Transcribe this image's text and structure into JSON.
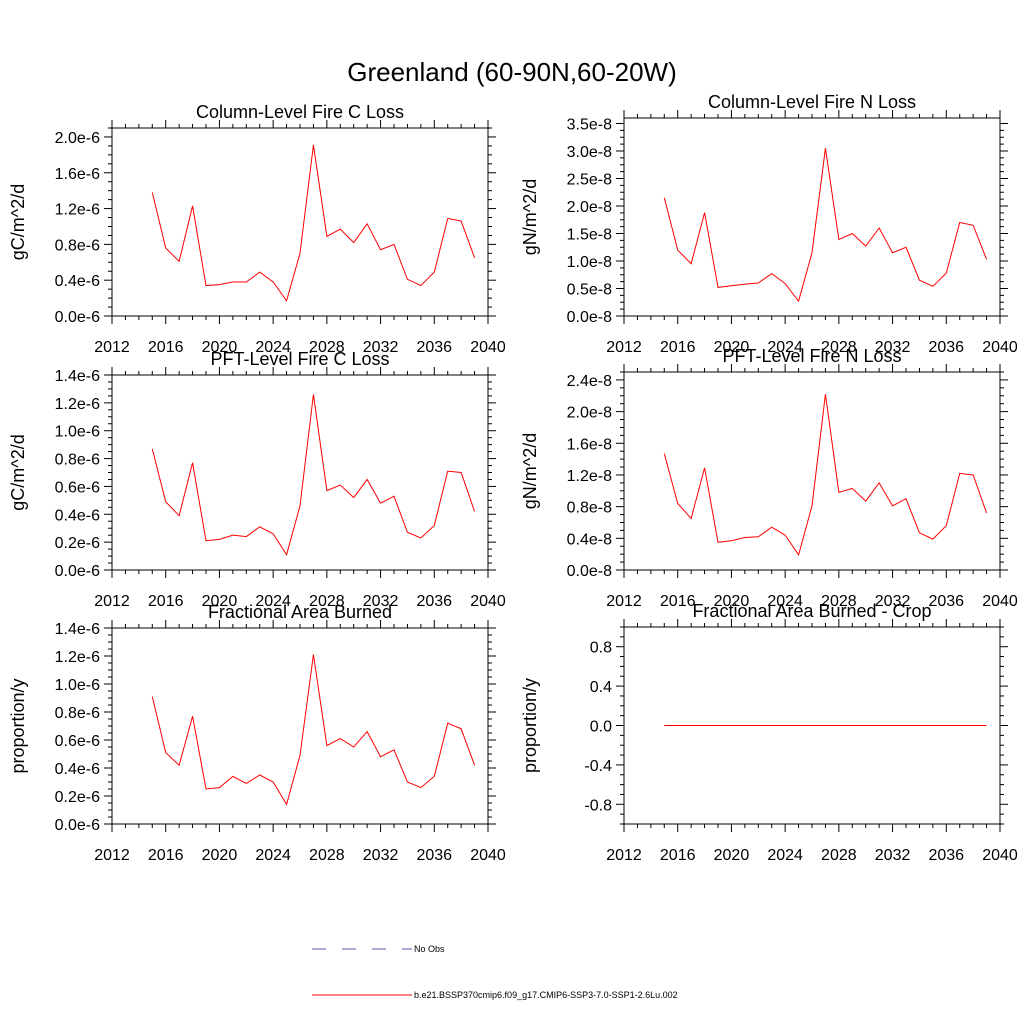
{
  "figure": {
    "title": "Greenland (60-90N,60-20W)"
  },
  "legend": {
    "items": [
      {
        "label": "No Obs",
        "color": "#5555aa",
        "style": "dashed"
      },
      {
        "label": "b.e21.BSSP370cmip6.f09_g17.CMIP6-SSP3-7.0-SSP1-2.6Lu.002",
        "color": "#ff0000",
        "style": "solid"
      }
    ]
  },
  "chart_data": [
    {
      "type": "line",
      "title": "Column-Level Fire C Loss",
      "ylabel": "gC/m^2/d",
      "xlim": [
        2012,
        2040
      ],
      "ylim": [
        0,
        2.1e-06
      ],
      "xticks": [
        2012,
        2016,
        2020,
        2024,
        2028,
        2032,
        2036,
        2040
      ],
      "xtick_labels": [
        "2012",
        "2016",
        "2020",
        "2024",
        "2028",
        "2032",
        "2036",
        "2040"
      ],
      "yticks": [
        0,
        4e-07,
        8e-07,
        1.2e-06,
        1.6e-06,
        2e-06
      ],
      "ytick_labels": [
        "0.0e-6",
        "0.4e-6",
        "0.8e-6",
        "1.2e-6",
        "1.6e-6",
        "2.0e-6"
      ],
      "x": [
        2015,
        2016,
        2017,
        2018,
        2019,
        2020,
        2021,
        2022,
        2023,
        2024,
        2025,
        2026,
        2027,
        2028,
        2029,
        2030,
        2031,
        2032,
        2033,
        2034,
        2035,
        2036,
        2037,
        2038,
        2039
      ],
      "series": [
        {
          "color": "#ff0000",
          "values": [
            1.38e-06,
            7.6e-07,
            6.1e-07,
            1.23e-06,
            3.4e-07,
            3.5e-07,
            3.8e-07,
            3.8e-07,
            4.9e-07,
            3.8e-07,
            1.7e-07,
            7e-07,
            1.91e-06,
            8.9e-07,
            9.7e-07,
            8.2e-07,
            1.03e-06,
            7.4e-07,
            8e-07,
            4.1e-07,
            3.4e-07,
            4.9e-07,
            1.09e-06,
            1.06e-06,
            6.5e-07
          ]
        }
      ]
    },
    {
      "type": "line",
      "title": "Column-Level Fire N Loss",
      "ylabel": "gN/m^2/d",
      "xlim": [
        2012,
        2040
      ],
      "ylim": [
        0,
        3.6e-08
      ],
      "xticks": [
        2012,
        2016,
        2020,
        2024,
        2028,
        2032,
        2036,
        2040
      ],
      "xtick_labels": [
        "2012",
        "2016",
        "2020",
        "2024",
        "2028",
        "2032",
        "2036",
        "2040"
      ],
      "yticks": [
        0,
        5e-09,
        1e-08,
        1.5e-08,
        2e-08,
        2.5e-08,
        3e-08,
        3.5e-08
      ],
      "ytick_labels": [
        "0.0e-8",
        "0.5e-8",
        "1.0e-8",
        "1.5e-8",
        "2.0e-8",
        "2.5e-8",
        "3.0e-8",
        "3.5e-8"
      ],
      "x": [
        2015,
        2016,
        2017,
        2018,
        2019,
        2020,
        2021,
        2022,
        2023,
        2024,
        2025,
        2026,
        2027,
        2028,
        2029,
        2030,
        2031,
        2032,
        2033,
        2034,
        2035,
        2036,
        2037,
        2038,
        2039
      ],
      "series": [
        {
          "color": "#ff0000",
          "values": [
            2.15e-08,
            1.2e-08,
            9.5e-09,
            1.88e-08,
            5.2e-09,
            5.5e-09,
            5.8e-09,
            6e-09,
            7.7e-09,
            5.9e-09,
            2.7e-09,
            1.15e-08,
            3.05e-08,
            1.39e-08,
            1.5e-08,
            1.27e-08,
            1.6e-08,
            1.15e-08,
            1.25e-08,
            6.5e-09,
            5.4e-09,
            7.8e-09,
            1.7e-08,
            1.65e-08,
            1.03e-08
          ]
        }
      ]
    },
    {
      "type": "line",
      "title": "PFT-Level Fire C Loss",
      "ylabel": "gC/m^2/d",
      "xlim": [
        2012,
        2040
      ],
      "ylim": [
        0,
        1.4e-06
      ],
      "xticks": [
        2012,
        2016,
        2020,
        2024,
        2028,
        2032,
        2036,
        2040
      ],
      "xtick_labels": [
        "2012",
        "2016",
        "2020",
        "2024",
        "2028",
        "2032",
        "2036",
        "2040"
      ],
      "yticks": [
        0,
        2e-07,
        4e-07,
        6e-07,
        8e-07,
        1e-06,
        1.2e-06,
        1.4e-06
      ],
      "ytick_labels": [
        "0.0e-6",
        "0.2e-6",
        "0.4e-6",
        "0.6e-6",
        "0.8e-6",
        "1.0e-6",
        "1.2e-6",
        "1.4e-6"
      ],
      "x": [
        2015,
        2016,
        2017,
        2018,
        2019,
        2020,
        2021,
        2022,
        2023,
        2024,
        2025,
        2026,
        2027,
        2028,
        2029,
        2030,
        2031,
        2032,
        2033,
        2034,
        2035,
        2036,
        2037,
        2038,
        2039
      ],
      "series": [
        {
          "color": "#ff0000",
          "values": [
            8.7e-07,
            4.9e-07,
            3.9e-07,
            7.7e-07,
            2.1e-07,
            2.2e-07,
            2.5e-07,
            2.4e-07,
            3.1e-07,
            2.6e-07,
            1.1e-07,
            4.6e-07,
            1.26e-06,
            5.7e-07,
            6.1e-07,
            5.2e-07,
            6.5e-07,
            4.8e-07,
            5.3e-07,
            2.7e-07,
            2.3e-07,
            3.2e-07,
            7.1e-07,
            7e-07,
            4.2e-07
          ]
        }
      ]
    },
    {
      "type": "line",
      "title": "PFT-Level Fire N Loss",
      "ylabel": "gN/m^2/d",
      "xlim": [
        2012,
        2040
      ],
      "ylim": [
        0,
        2.5e-08
      ],
      "xticks": [
        2012,
        2016,
        2020,
        2024,
        2028,
        2032,
        2036,
        2040
      ],
      "xtick_labels": [
        "2012",
        "2016",
        "2020",
        "2024",
        "2028",
        "2032",
        "2036",
        "2040"
      ],
      "yticks": [
        0,
        4e-09,
        8e-09,
        1.2e-08,
        1.6e-08,
        2e-08,
        2.4e-08
      ],
      "ytick_labels": [
        "0.0e-8",
        "0.4e-8",
        "0.8e-8",
        "1.2e-8",
        "1.6e-8",
        "2.0e-8",
        "2.4e-8"
      ],
      "x": [
        2015,
        2016,
        2017,
        2018,
        2019,
        2020,
        2021,
        2022,
        2023,
        2024,
        2025,
        2026,
        2027,
        2028,
        2029,
        2030,
        2031,
        2032,
        2033,
        2034,
        2035,
        2036,
        2037,
        2038,
        2039
      ],
      "series": [
        {
          "color": "#ff0000",
          "values": [
            1.47e-08,
            8.4e-09,
            6.5e-09,
            1.29e-08,
            3.5e-09,
            3.7e-09,
            4.1e-09,
            4.2e-09,
            5.4e-09,
            4.4e-09,
            1.9e-09,
            8.1e-09,
            2.22e-08,
            9.8e-09,
            1.03e-08,
            8.7e-09,
            1.1e-08,
            8.1e-09,
            9e-09,
            4.7e-09,
            3.9e-09,
            5.6e-09,
            1.22e-08,
            1.2e-08,
            7.2e-09
          ]
        }
      ]
    },
    {
      "type": "line",
      "title": "Fractional Area Burned",
      "ylabel": "proportion/y",
      "xlim": [
        2012,
        2040
      ],
      "ylim": [
        0,
        1.4e-06
      ],
      "xticks": [
        2012,
        2016,
        2020,
        2024,
        2028,
        2032,
        2036,
        2040
      ],
      "xtick_labels": [
        "2012",
        "2016",
        "2020",
        "2024",
        "2028",
        "2032",
        "2036",
        "2040"
      ],
      "yticks": [
        0,
        2e-07,
        4e-07,
        6e-07,
        8e-07,
        1e-06,
        1.2e-06,
        1.4e-06
      ],
      "ytick_labels": [
        "0.0e-6",
        "0.2e-6",
        "0.4e-6",
        "0.6e-6",
        "0.8e-6",
        "1.0e-6",
        "1.2e-6",
        "1.4e-6"
      ],
      "x": [
        2015,
        2016,
        2017,
        2018,
        2019,
        2020,
        2021,
        2022,
        2023,
        2024,
        2025,
        2026,
        2027,
        2028,
        2029,
        2030,
        2031,
        2032,
        2033,
        2034,
        2035,
        2036,
        2037,
        2038,
        2039
      ],
      "series": [
        {
          "color": "#ff0000",
          "values": [
            9.1e-07,
            5.1e-07,
            4.2e-07,
            7.7e-07,
            2.5e-07,
            2.6e-07,
            3.4e-07,
            2.9e-07,
            3.5e-07,
            3e-07,
            1.4e-07,
            4.9e-07,
            1.21e-06,
            5.6e-07,
            6.1e-07,
            5.5e-07,
            6.6e-07,
            4.8e-07,
            5.3e-07,
            3e-07,
            2.6e-07,
            3.4e-07,
            7.2e-07,
            6.8e-07,
            4.2e-07
          ]
        }
      ]
    },
    {
      "type": "line",
      "title": "Fractional Area Burned - Crop",
      "ylabel": "proportion/y",
      "xlim": [
        2012,
        2040
      ],
      "ylim": [
        -1.0,
        1.0
      ],
      "xticks": [
        2012,
        2016,
        2020,
        2024,
        2028,
        2032,
        2036,
        2040
      ],
      "xtick_labels": [
        "2012",
        "2016",
        "2020",
        "2024",
        "2028",
        "2032",
        "2036",
        "2040"
      ],
      "yticks": [
        -0.8,
        -0.4,
        0.0,
        0.4,
        0.8
      ],
      "ytick_labels": [
        "-0.8",
        "-0.4",
        "0.0",
        "0.4",
        "0.8"
      ],
      "x": [
        2015,
        2016,
        2017,
        2018,
        2019,
        2020,
        2021,
        2022,
        2023,
        2024,
        2025,
        2026,
        2027,
        2028,
        2029,
        2030,
        2031,
        2032,
        2033,
        2034,
        2035,
        2036,
        2037,
        2038,
        2039
      ],
      "series": [
        {
          "color": "#ff0000",
          "values": [
            0,
            0,
            0,
            0,
            0,
            0,
            0,
            0,
            0,
            0,
            0,
            0,
            0,
            0,
            0,
            0,
            0,
            0,
            0,
            0,
            0,
            0,
            0,
            0,
            0
          ]
        }
      ]
    }
  ]
}
